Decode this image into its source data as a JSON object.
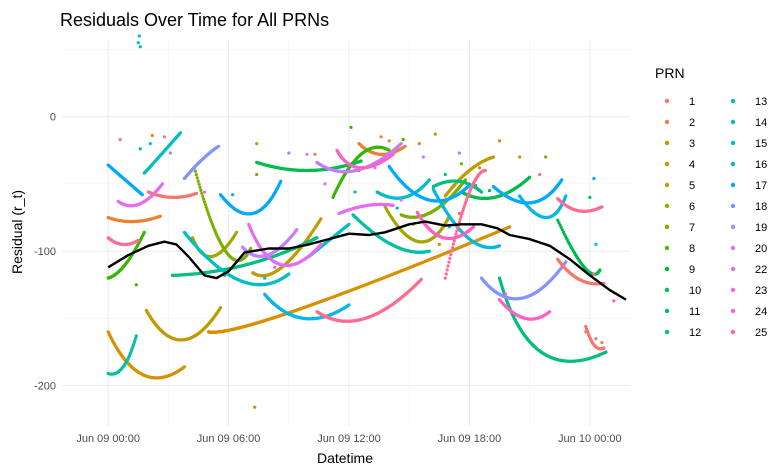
{
  "chart_data": {
    "type": "scatter",
    "title": "Residuals Over Time for All PRNs",
    "xlabel": "Datetime",
    "ylabel": "Residual (r_t)",
    "x_unit": "hours since Jun 09 00:00",
    "xlim": [
      -2.3,
      26
    ],
    "ylim": [
      -230,
      57
    ],
    "xticks": [
      {
        "value": 0,
        "label": "Jun 09 00:00"
      },
      {
        "value": 6,
        "label": "Jun 09 06:00"
      },
      {
        "value": 12,
        "label": "Jun 09 12:00"
      },
      {
        "value": 18,
        "label": "Jun 09 18:00"
      },
      {
        "value": 24,
        "label": "Jun 10 00:00"
      }
    ],
    "yticks": [
      {
        "value": 0,
        "label": "0"
      },
      {
        "value": -100,
        "label": "-100"
      },
      {
        "value": -200,
        "label": "-200"
      }
    ],
    "grid": true,
    "legend": {
      "title": "PRN",
      "position": "right",
      "columns": 2
    },
    "series": [
      {
        "name": "1",
        "color": "#F8766D",
        "arcs": [
          [
            2.0,
            -56
          ],
          [
            3.2,
            -60
          ],
          [
            4.4,
            -57
          ]
        ],
        "scatter": [
          [
            2.8,
            -15
          ],
          [
            10.3,
            -28
          ],
          [
            21.5,
            -43
          ]
        ]
      },
      {
        "name": "2",
        "color": "#EA8331",
        "arcs": [
          [
            0.0,
            -75
          ],
          [
            1.2,
            -78
          ],
          [
            2.6,
            -74
          ],
          [
            12.5,
            -20
          ],
          [
            13.5,
            -28
          ],
          [
            14.8,
            -22
          ]
        ],
        "scatter": [
          [
            13.6,
            -15
          ],
          [
            14.0,
            -18
          ],
          [
            15.5,
            -20
          ]
        ]
      },
      {
        "name": "3",
        "color": "#D89000",
        "arcs": [
          [
            0.0,
            -160
          ],
          [
            1.6,
            -192
          ],
          [
            3.8,
            -186
          ],
          [
            5.0,
            -160
          ],
          [
            6.6,
            -143
          ],
          [
            20.0,
            -82
          ],
          [
            21.5,
            -98
          ],
          [
            22.8,
            -79
          ]
        ],
        "scatter": [
          [
            2.2,
            -14
          ],
          [
            7.4,
            -20
          ],
          [
            19.5,
            -18
          ]
        ]
      },
      {
        "name": "4",
        "color": "#C09B00",
        "arcs": [
          [
            1.9,
            -144
          ],
          [
            3.6,
            -166
          ],
          [
            5.6,
            -142
          ],
          [
            7.2,
            -116
          ],
          [
            8.4,
            -112
          ],
          [
            10.6,
            -76
          ],
          [
            16.8,
            -59
          ],
          [
            18.0,
            -40
          ],
          [
            19.2,
            -30
          ]
        ],
        "scatter": [
          [
            7.3,
            -216
          ],
          [
            16.3,
            -13
          ],
          [
            20.5,
            -30
          ]
        ]
      },
      {
        "name": "5",
        "color": "#A3A500",
        "arcs": [
          [
            4.2,
            -90
          ],
          [
            5.0,
            -104
          ],
          [
            6.4,
            -86
          ],
          [
            13.8,
            -67
          ],
          [
            15.6,
            -93
          ],
          [
            17.0,
            -74
          ]
        ],
        "scatter": [
          [
            15.2,
            -80
          ],
          [
            16.5,
            -95
          ],
          [
            18.5,
            -38
          ]
        ]
      },
      {
        "name": "6",
        "color": "#7CAE00",
        "arcs": [
          [
            4.3,
            -38
          ],
          [
            6.0,
            -100
          ],
          [
            7.1,
            -98
          ],
          [
            14.6,
            -73
          ],
          [
            16.0,
            -71
          ],
          [
            17.8,
            -47
          ]
        ],
        "scatter": [
          [
            7.4,
            -43
          ],
          [
            17.6,
            -35
          ],
          [
            21.8,
            -30
          ]
        ]
      },
      {
        "name": "7",
        "color": "#39B600",
        "arcs": [
          [
            0.0,
            -120
          ],
          [
            0.8,
            -110
          ],
          [
            1.8,
            -86
          ],
          [
            11.2,
            -60
          ],
          [
            12.6,
            -28
          ],
          [
            14.0,
            -25
          ]
        ],
        "scatter": [
          [
            1.4,
            -125
          ],
          [
            12.1,
            -8
          ],
          [
            14.7,
            -17
          ]
        ]
      },
      {
        "name": "8",
        "color": "#00BB4E",
        "arcs": [
          [
            7.4,
            -34
          ],
          [
            10.0,
            -40
          ],
          [
            12.6,
            -33
          ],
          [
            17.6,
            -56
          ],
          [
            19.2,
            -60
          ],
          [
            21.0,
            -45
          ],
          [
            22.4,
            -77
          ],
          [
            24.0,
            -112
          ],
          [
            24.5,
            -114
          ]
        ],
        "scatter": [
          [
            12.5,
            -40
          ],
          [
            19.0,
            -55
          ],
          [
            24.0,
            -60
          ]
        ]
      },
      {
        "name": "9",
        "color": "#00BF7D",
        "arcs": [
          [
            3.2,
            -118
          ],
          [
            7.0,
            -110
          ],
          [
            10.4,
            -90
          ],
          [
            16.2,
            -52
          ],
          [
            17.5,
            -48
          ],
          [
            18.6,
            -56
          ],
          [
            19.5,
            -120
          ],
          [
            21.0,
            -175
          ],
          [
            24.8,
            -175
          ]
        ],
        "scatter": [
          [
            5.8,
            -118
          ],
          [
            16.8,
            -43
          ],
          [
            18.3,
            -51
          ]
        ]
      },
      {
        "name": "10",
        "color": "#00C1A3",
        "arcs": [
          [
            0.0,
            -191
          ],
          [
            0.8,
            -186
          ],
          [
            1.4,
            -163
          ],
          [
            12.2,
            -73
          ],
          [
            14.4,
            -96
          ],
          [
            16.0,
            -100
          ]
        ],
        "scatter": [
          [
            1.6,
            -24
          ],
          [
            11.4,
            -88
          ],
          [
            12.3,
            -56
          ]
        ]
      },
      {
        "name": "11",
        "color": "#00BFC4",
        "arcs": [
          [
            1.8,
            -42
          ],
          [
            2.6,
            -28
          ],
          [
            3.6,
            -12
          ],
          [
            3.8,
            -86
          ],
          [
            6.8,
            -122
          ],
          [
            9.0,
            -117
          ],
          [
            10.0,
            -104
          ],
          [
            11.0,
            -92
          ],
          [
            12.0,
            -80
          ],
          [
            13.4,
            -56
          ],
          [
            14.8,
            -60
          ],
          [
            16.0,
            -47
          ]
        ],
        "scatter": [
          [
            1.5,
            55
          ],
          [
            1.55,
            60
          ],
          [
            1.6,
            52
          ],
          [
            2.1,
            -20
          ]
        ]
      },
      {
        "name": "12",
        "color": "#00B8E7",
        "arcs": [
          [
            7.8,
            -132
          ],
          [
            9.6,
            -150
          ],
          [
            12.0,
            -140
          ],
          [
            16.2,
            -54
          ],
          [
            18.0,
            -90
          ],
          [
            19.5,
            -96
          ],
          [
            20.5,
            -59
          ],
          [
            22.0,
            -75
          ],
          [
            22.8,
            -59
          ]
        ],
        "scatter": [
          [
            7.8,
            -120
          ],
          [
            17.0,
            -82
          ],
          [
            24.3,
            -95
          ]
        ]
      },
      {
        "name": "13",
        "color": "#00A9FF",
        "arcs": [
          [
            0.0,
            -36
          ],
          [
            1.0,
            -48
          ],
          [
            1.7,
            -58
          ],
          [
            5.6,
            -58
          ],
          [
            7.3,
            -72
          ],
          [
            8.6,
            -48
          ],
          [
            14.0,
            -37
          ],
          [
            16.0,
            -62
          ],
          [
            18.0,
            -51
          ],
          [
            19.2,
            -52
          ],
          [
            21.2,
            -64
          ],
          [
            22.6,
            -47
          ]
        ],
        "scatter": [
          [
            6.2,
            -58
          ],
          [
            14.4,
            -68
          ],
          [
            24.2,
            -46
          ]
        ]
      },
      {
        "name": "14",
        "color": "#8494FF",
        "arcs": [
          [
            3.8,
            -46
          ],
          [
            4.7,
            -32
          ],
          [
            5.5,
            -22
          ],
          [
            18.6,
            -120
          ],
          [
            20.5,
            -135
          ],
          [
            22.8,
            -108
          ]
        ],
        "scatter": [
          [
            3.1,
            -27
          ],
          [
            9.0,
            -27
          ],
          [
            17.5,
            -27
          ]
        ]
      },
      {
        "name": "15",
        "color": "#C77CFF",
        "arcs": [
          [
            6.7,
            -97
          ],
          [
            7.8,
            -103
          ],
          [
            9.4,
            -84
          ],
          [
            10.4,
            -34
          ],
          [
            12.2,
            -40
          ],
          [
            14.6,
            -20
          ]
        ],
        "scatter": [
          [
            9.9,
            -28
          ],
          [
            13.3,
            -38
          ],
          [
            15.7,
            -30
          ]
        ]
      },
      {
        "name": "16",
        "color": "#E76BF3",
        "arcs": [
          [
            0.5,
            -63
          ],
          [
            1.5,
            -65
          ],
          [
            2.7,
            -50
          ],
          [
            7.0,
            -80
          ],
          [
            8.4,
            -110
          ],
          [
            10.6,
            -95
          ],
          [
            11.5,
            -72
          ],
          [
            13.0,
            -66
          ],
          [
            14.2,
            -66
          ]
        ],
        "scatter": [
          [
            4.8,
            -56
          ],
          [
            10.8,
            -50
          ],
          [
            14.6,
            -62
          ]
        ]
      },
      {
        "name": "17",
        "color": "#FF61C3",
        "arcs": [
          [
            11.4,
            -25
          ],
          [
            12.3,
            -38
          ],
          [
            14.2,
            -28
          ],
          [
            15.4,
            -71
          ],
          [
            16.6,
            -90
          ],
          [
            18.2,
            -82
          ],
          [
            19.5,
            -136
          ],
          [
            20.8,
            -150
          ],
          [
            22.0,
            -145
          ]
        ],
        "scatter": [
          [
            8.3,
            -112
          ],
          [
            19.8,
            -132
          ],
          [
            25.2,
            -137
          ]
        ]
      },
      {
        "name": "18",
        "color": "#FF6C91",
        "arcs": [
          [
            0.0,
            -90
          ],
          [
            0.7,
            -95
          ],
          [
            1.5,
            -92
          ],
          [
            10.4,
            -145
          ],
          [
            12.6,
            -150
          ],
          [
            15.6,
            -121
          ],
          [
            16.8,
            -120
          ],
          [
            18.0,
            -60
          ],
          [
            18.8,
            -40
          ],
          [
            22.4,
            -61
          ],
          [
            23.4,
            -70
          ],
          [
            24.6,
            -67
          ]
        ],
        "scatter": [
          [
            0.6,
            -17
          ],
          [
            17.5,
            -72
          ],
          [
            24.2,
            -117
          ]
        ]
      },
      {
        "name": "19",
        "color": "#F8766D",
        "arcs": [
          [
            22.4,
            -106
          ],
          [
            23.4,
            -121
          ],
          [
            24.7,
            -124
          ],
          [
            23.8,
            -156
          ],
          [
            24.2,
            -170
          ],
          [
            24.7,
            -172
          ]
        ],
        "scatter": [
          [
            23.8,
            -160
          ],
          [
            24.3,
            -165
          ],
          [
            24.6,
            -168
          ]
        ]
      }
    ],
    "legend_labels": [
      "1",
      "2",
      "3",
      "4",
      "5",
      "6",
      "7",
      "8",
      "9",
      "10",
      "11",
      "12",
      "13",
      "14",
      "15",
      "16",
      "17",
      "18",
      "19",
      "20",
      "22",
      "23",
      "24",
      "25"
    ],
    "legend_colors": [
      "#F8766D",
      "#EF7F49",
      "#E18A00",
      "#CF9400",
      "#BB9D00",
      "#A3A500",
      "#86AC00",
      "#5BB300",
      "#00B81F",
      "#00BC59",
      "#00BE7A",
      "#00C094",
      "#00C0AF",
      "#00BDC8",
      "#00B8DE",
      "#00B0F1",
      "#00A5FF",
      "#6E9CFF",
      "#A58AFF",
      "#C77CFF",
      "#E26EF7",
      "#F265E7",
      "#FE61CF",
      "#FF65AE"
    ],
    "smooth": {
      "color": "#000000",
      "points": [
        [
          0,
          -112
        ],
        [
          1,
          -103
        ],
        [
          2,
          -96
        ],
        [
          2.8,
          -93
        ],
        [
          3.4,
          -95
        ],
        [
          4,
          -104
        ],
        [
          4.8,
          -118
        ],
        [
          5.4,
          -120
        ],
        [
          6,
          -115
        ],
        [
          6.8,
          -101
        ],
        [
          8,
          -98
        ],
        [
          9,
          -98
        ],
        [
          10,
          -95
        ],
        [
          11,
          -91
        ],
        [
          12,
          -87
        ],
        [
          13,
          -88
        ],
        [
          13.8,
          -86
        ],
        [
          15,
          -80
        ],
        [
          15.8,
          -78
        ],
        [
          16.8,
          -81
        ],
        [
          17.6,
          -80
        ],
        [
          18.6,
          -80
        ],
        [
          19.4,
          -83
        ],
        [
          20,
          -88
        ],
        [
          21,
          -91
        ],
        [
          22,
          -96
        ],
        [
          23,
          -106
        ],
        [
          24,
          -118
        ],
        [
          25,
          -129
        ],
        [
          25.8,
          -136
        ]
      ]
    }
  }
}
